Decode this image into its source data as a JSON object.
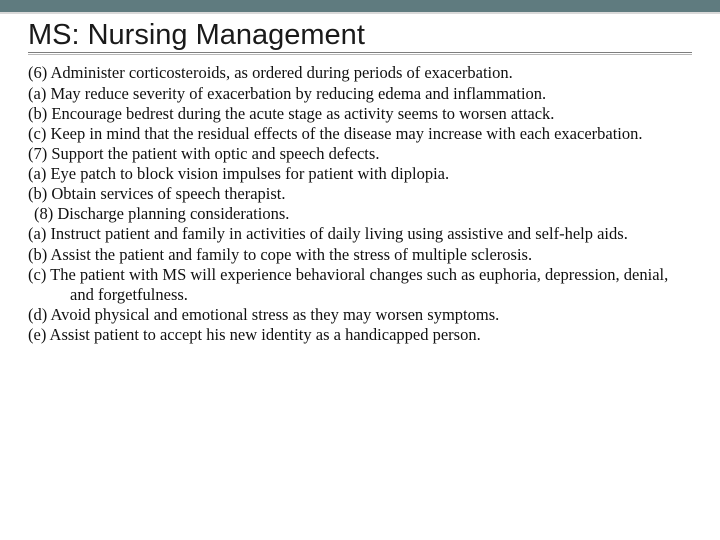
{
  "colors": {
    "top_bar": "#5f7b7f",
    "rule": "#7d7d7d",
    "text": "#111111",
    "background": "#ffffff"
  },
  "typography": {
    "title_font": "Trebuchet MS",
    "title_size_pt": 22,
    "body_font": "Georgia",
    "body_size_pt": 12
  },
  "slide": {
    "title": "MS: Nursing Management",
    "items": [
      "(6) Administer corticosteroids, as ordered during periods of exacerbation.",
      "(a) May reduce severity of exacerbation by reducing edema and inflammation.",
      "(b) Encourage bedrest during the acute stage as activity seems to worsen attack.",
      "(c) Keep in mind that the residual effects of the disease may increase with each exacerbation.",
      "(7) Support the patient with optic and speech defects.",
      "(a) Eye patch to block vision impulses for patient with diplopia.",
      "(b) Obtain services of speech therapist.",
      " (8) Discharge planning considerations.",
      "(a) Instruct patient and family in activities of daily living using assistive and self-help aids.",
      "(b) Assist the patient and family to cope with the stress of multiple sclerosis.",
      "(c) The patient with MS will experience behavioral changes such as euphoria, depression, denial, and forgetfulness.",
      "(d) Avoid physical and emotional stress as they may worsen symptoms.",
      "(e) Assist patient to accept his new identity as a handicapped person."
    ]
  }
}
